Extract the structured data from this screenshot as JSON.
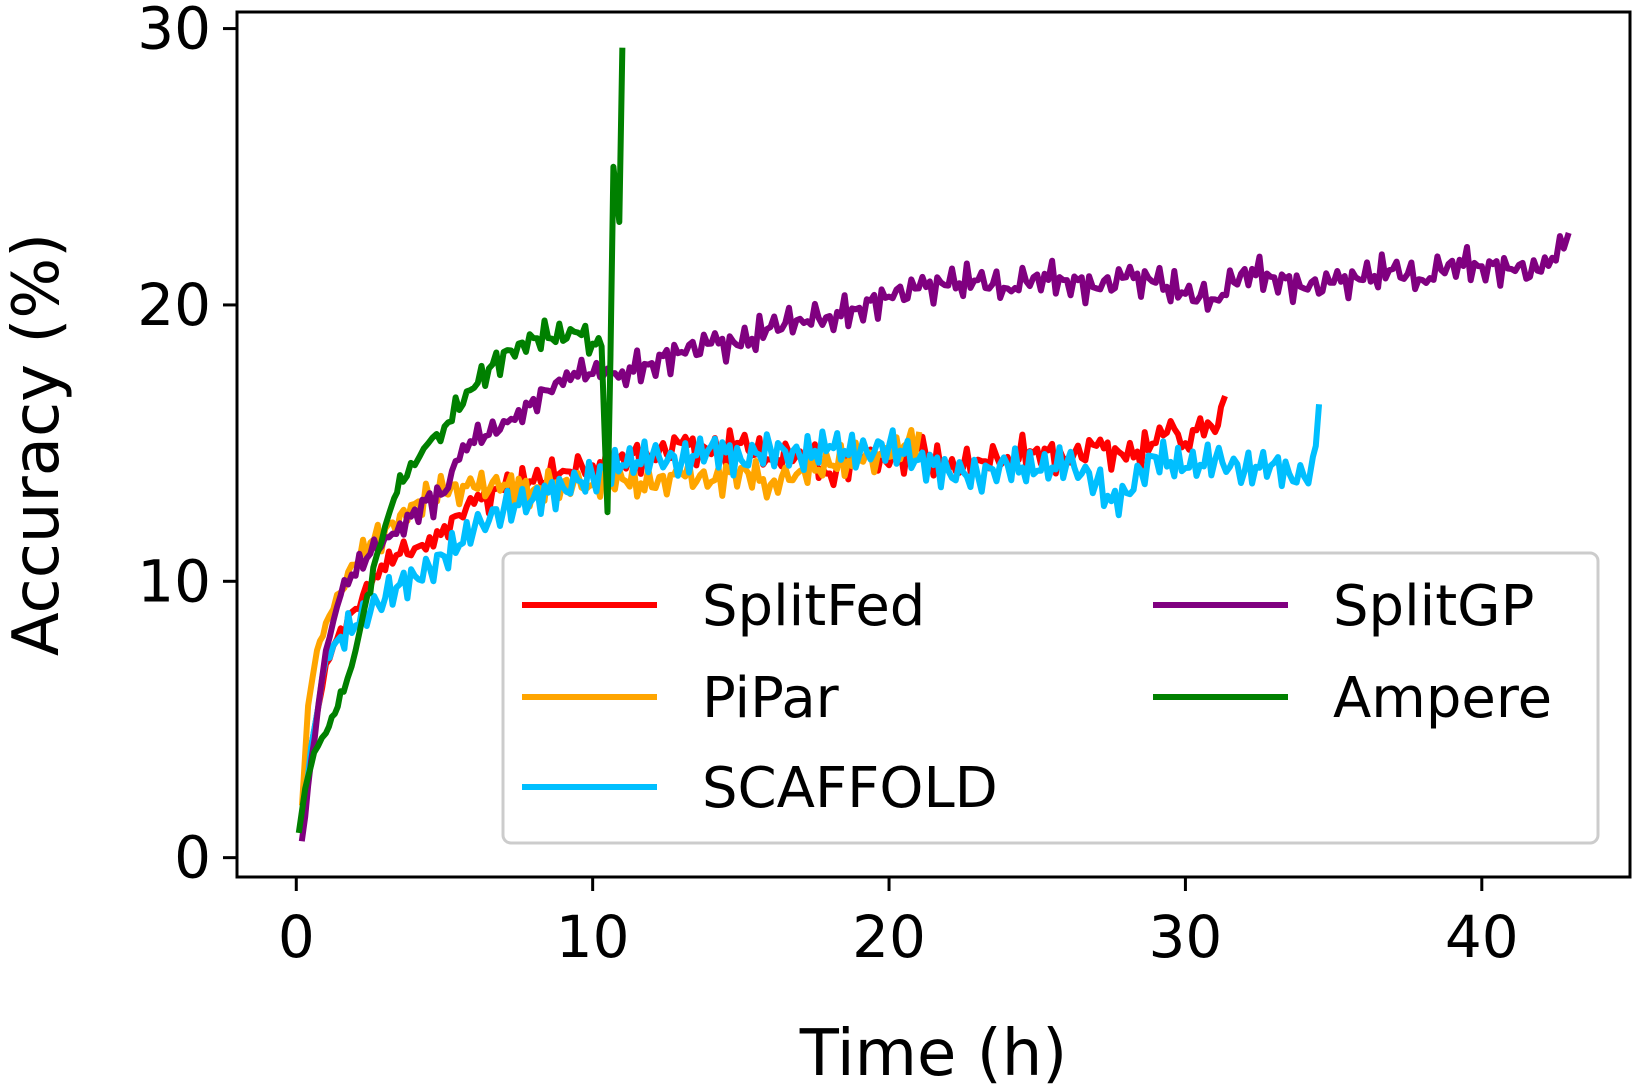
{
  "chart_data": {
    "type": "line",
    "title": "",
    "xlabel": "Time (h)",
    "ylabel": "Accuracy (%)",
    "xlim": [
      -2,
      45
    ],
    "ylim": [
      -0.7,
      30.6
    ],
    "xticks": [
      0,
      10,
      20,
      30,
      40
    ],
    "yticks": [
      0,
      10,
      20,
      30
    ],
    "xtick_labels": [
      "0",
      "10",
      "20",
      "30",
      "40"
    ],
    "ytick_labels": [
      "0",
      "10",
      "20",
      "30"
    ],
    "grid": false,
    "legend": {
      "placement": "lower-right",
      "columns": 2
    },
    "series": [
      {
        "name": "SplitFed",
        "color": "#ff0000",
        "x": [
          0.2,
          0.5,
          1.0,
          1.5,
          2.0,
          2.5,
          3.0,
          3.5,
          4.0,
          4.5,
          5.0,
          5.5,
          6.0,
          7.0,
          8.0,
          9.0,
          10.0,
          11.0,
          12.0,
          13.0,
          14.0,
          15.0,
          16.0,
          17.0,
          18.0,
          19.0,
          20.0,
          21.0,
          22.0,
          23.0,
          24.0,
          25.0,
          26.0,
          27.0,
          28.0,
          29.0,
          29.5,
          30.0,
          30.5,
          31.0,
          31.3
        ],
        "y": [
          1.0,
          4.0,
          7.0,
          8.3,
          9.0,
          9.8,
          10.4,
          11.0,
          11.2,
          11.6,
          12.0,
          12.4,
          12.8,
          13.3,
          13.6,
          14.0,
          14.2,
          14.6,
          14.5,
          15.0,
          14.6,
          15.0,
          14.4,
          14.7,
          13.9,
          14.6,
          14.2,
          14.8,
          14.0,
          14.4,
          14.5,
          14.8,
          14.4,
          14.9,
          14.4,
          15.0,
          15.8,
          15.0,
          15.9,
          15.4,
          16.6
        ]
      },
      {
        "name": "PiPar",
        "color": "#ffa500",
        "x": [
          0.2,
          0.4,
          0.7,
          1.0,
          1.5,
          2.0,
          2.5,
          3.0,
          3.5,
          4.0,
          4.5,
          5.0,
          6.0,
          7.0,
          8.0,
          9.0,
          10.0,
          11.0,
          12.0,
          13.0,
          14.0,
          15.0,
          16.0,
          17.0,
          18.0,
          19.0,
          20.0,
          20.5,
          21.0
        ],
        "y": [
          2.0,
          5.5,
          7.5,
          8.5,
          9.6,
          10.6,
          11.4,
          11.9,
          12.4,
          12.8,
          13.0,
          13.2,
          13.4,
          13.5,
          13.3,
          13.6,
          13.5,
          13.7,
          13.4,
          13.9,
          13.6,
          14.1,
          13.5,
          14.0,
          14.2,
          14.4,
          14.5,
          14.9,
          15.3
        ]
      },
      {
        "name": "SCAFFOLD",
        "color": "#00bfff",
        "x": [
          0.2,
          0.5,
          1.0,
          1.5,
          2.0,
          2.5,
          3.0,
          3.5,
          4.0,
          4.5,
          5.0,
          5.5,
          6.0,
          7.0,
          8.0,
          9.0,
          10.0,
          10.5,
          11.0,
          12.0,
          13.0,
          14.0,
          15.0,
          16.0,
          17.0,
          18.0,
          19.0,
          20.0,
          21.0,
          22.0,
          23.0,
          24.0,
          25.0,
          26.0,
          27.0,
          27.5,
          28.0,
          28.5,
          29.0,
          30.0,
          31.0,
          32.0,
          33.0,
          33.5,
          34.0,
          34.3,
          34.5
        ],
        "y": [
          1.5,
          4.0,
          7.2,
          8.0,
          8.4,
          8.9,
          9.4,
          9.9,
          10.2,
          10.5,
          10.9,
          11.3,
          11.9,
          12.6,
          13.0,
          13.4,
          13.8,
          14.0,
          14.2,
          14.5,
          14.3,
          14.9,
          14.4,
          14.8,
          14.5,
          14.9,
          14.6,
          14.9,
          14.4,
          14.0,
          13.8,
          14.2,
          14.0,
          14.3,
          13.6,
          12.9,
          13.2,
          14.0,
          14.5,
          14.1,
          14.4,
          14.0,
          14.3,
          13.9,
          13.8,
          14.5,
          16.3
        ]
      },
      {
        "name": "SplitGP",
        "color": "#800080",
        "x": [
          0.2,
          0.5,
          1.0,
          1.5,
          2.0,
          2.5,
          3.0,
          3.5,
          4.0,
          5.0,
          5.5,
          6.0,
          6.5,
          7.0,
          7.5,
          8.0,
          8.5,
          9.0,
          9.5,
          10.0,
          10.5,
          11.0,
          12.0,
          13.0,
          14.0,
          15.0,
          16.0,
          17.0,
          18.0,
          19.0,
          20.0,
          21.0,
          22.0,
          23.0,
          24.0,
          25.0,
          26.0,
          27.0,
          28.0,
          29.0,
          30.0,
          31.0,
          32.0,
          33.0,
          34.0,
          35.0,
          36.0,
          37.0,
          38.0,
          39.0,
          40.0,
          41.0,
          42.0,
          42.5,
          42.9
        ],
        "y": [
          0.7,
          3.5,
          7.5,
          9.5,
          10.2,
          11.0,
          11.6,
          12.1,
          12.6,
          13.2,
          14.4,
          15.0,
          15.3,
          15.8,
          16.2,
          16.6,
          16.9,
          17.1,
          17.4,
          17.5,
          17.7,
          17.6,
          17.9,
          18.3,
          18.6,
          18.5,
          19.2,
          19.5,
          19.6,
          19.9,
          20.3,
          20.6,
          20.7,
          20.9,
          20.6,
          21.1,
          20.9,
          20.6,
          21.0,
          20.8,
          20.4,
          20.2,
          21.3,
          21.0,
          20.6,
          20.8,
          20.9,
          21.3,
          20.9,
          21.6,
          21.4,
          21.3,
          21.2,
          21.6,
          22.5
        ]
      },
      {
        "name": "Ampere",
        "color": "#008000",
        "x": [
          0.1,
          0.3,
          0.6,
          1.0,
          1.3,
          1.6,
          2.0,
          2.3,
          2.6,
          3.0,
          3.3,
          3.6,
          4.0,
          4.3,
          4.6,
          5.0,
          5.5,
          6.0,
          6.5,
          7.0,
          7.5,
          8.0,
          8.5,
          9.0,
          9.5,
          10.0,
          10.3,
          10.5,
          10.6,
          10.7,
          10.9,
          11.0
        ],
        "y": [
          1.0,
          2.5,
          3.8,
          4.5,
          5.2,
          6.0,
          7.5,
          9.0,
          10.5,
          12.0,
          13.0,
          13.6,
          14.2,
          14.8,
          15.2,
          15.6,
          16.2,
          17.0,
          17.7,
          18.3,
          18.6,
          18.8,
          18.8,
          18.7,
          19.0,
          18.6,
          18.5,
          12.5,
          18.0,
          25.0,
          23.0,
          29.2
        ]
      }
    ]
  }
}
